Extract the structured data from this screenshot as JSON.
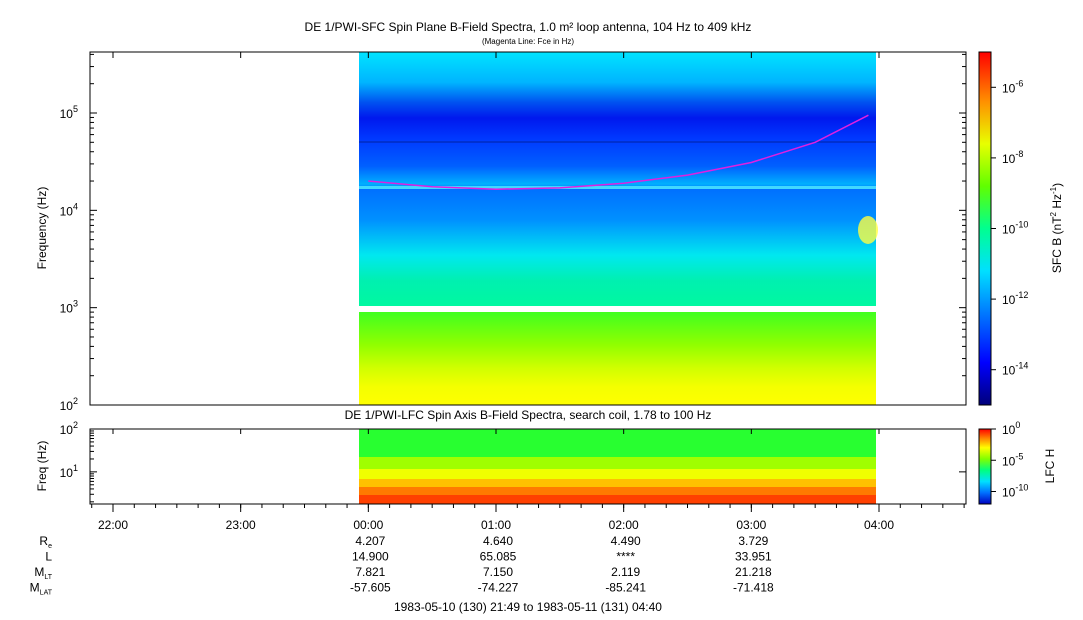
{
  "titles": {
    "main": "DE 1/PWI-SFC  Spin Plane B-Field Spectra, 1.0 m² loop antenna, 104 Hz to 409 kHz",
    "sub": "(Magenta Line: Fce in Hz)",
    "lfc": "DE 1/PWI-LFC  Spin Axis B-Field Spectra, search coil, 1.78 to 100 Hz"
  },
  "colors": {
    "fce_line": "#e020e0",
    "colormap": [
      "#00007a",
      "#0000ff",
      "#0080ff",
      "#00e0ff",
      "#00ff80",
      "#80ff00",
      "#ffff00",
      "#ff8000",
      "#ff0000"
    ]
  },
  "chart_data": [
    {
      "type": "heatmap",
      "title": "DE 1/PWI-SFC  Spin Plane B-Field Spectra, 1.0 m² loop antenna, 104 Hz to 409 kHz",
      "subtitle": "(Magenta Line: Fce in Hz)",
      "ylabel": "Frequency (Hz)",
      "yscale": "log",
      "ylim": [
        100,
        409000
      ],
      "yticks": [
        {
          "base": "10",
          "exp": "2"
        },
        {
          "base": "10",
          "exp": "3"
        },
        {
          "base": "10",
          "exp": "4"
        },
        {
          "base": "10",
          "exp": "5"
        }
      ],
      "data_start": "00:00",
      "data_end": "03:58",
      "gap_hz": [
        950,
        1050
      ],
      "fce_line_hz": [
        {
          "t": "00:00",
          "f": 20000
        },
        {
          "t": "00:30",
          "f": 17500
        },
        {
          "t": "01:00",
          "f": 16500
        },
        {
          "t": "01:30",
          "f": 17000
        },
        {
          "t": "02:00",
          "f": 19000
        },
        {
          "t": "02:30",
          "f": 23000
        },
        {
          "t": "03:00",
          "f": 31000
        },
        {
          "t": "03:30",
          "f": 50000
        },
        {
          "t": "03:55",
          "f": 95000
        }
      ],
      "colorbar": {
        "label": "SFC B (nT",
        "label_sup1": "2",
        "label_mid": " Hz",
        "label_sup2": "-1",
        "label_end": ")",
        "scale": "log",
        "range": [
          1e-15,
          1e-05
        ],
        "ticks": [
          {
            "base": "10",
            "exp": "-6"
          },
          {
            "base": "10",
            "exp": "-8"
          },
          {
            "base": "10",
            "exp": "-10"
          },
          {
            "base": "10",
            "exp": "-12"
          },
          {
            "base": "10",
            "exp": "-14"
          }
        ]
      }
    },
    {
      "type": "heatmap",
      "title": "DE 1/PWI-LFC  Spin Axis B-Field Spectra, search coil, 1.78 to 100 Hz",
      "ylabel": "Freq (Hz)",
      "yscale": "log",
      "ylim": [
        1.78,
        100
      ],
      "yticks": [
        {
          "base": "10",
          "exp": "2"
        },
        {
          "base": "10",
          "exp": "1"
        }
      ],
      "data_start": "00:00",
      "data_end": "03:58",
      "colorbar": {
        "label": "LFC H",
        "scale": "log",
        "range": [
          1e-12,
          1
        ],
        "ticks": [
          {
            "base": "10",
            "exp": "0"
          },
          {
            "base": "10",
            "exp": "-5"
          },
          {
            "base": "10",
            "exp": "-10"
          }
        ]
      }
    }
  ],
  "time_axis": {
    "ticks": [
      "22:00",
      "23:00",
      "00:00",
      "01:00",
      "02:00",
      "03:00",
      "04:00"
    ],
    "range": "1983-05-10 (130) 21:49 to 1983-05-11 (131) 04:40"
  },
  "ephemeris": {
    "rows": [
      {
        "label": "R",
        "sub": "e",
        "values": [
          "4.207",
          "4.640",
          "4.490",
          "3.729"
        ]
      },
      {
        "label": "L",
        "sub": "",
        "values": [
          "14.900",
          "65.085",
          "****",
          "33.951"
        ]
      },
      {
        "label": "M",
        "sub": "LT",
        "values": [
          "7.821",
          "7.150",
          "2.119",
          "21.218"
        ]
      },
      {
        "label": "M",
        "sub": "LAT",
        "values": [
          "-57.605",
          "-74.227",
          "-85.241",
          "-71.418"
        ]
      }
    ]
  }
}
